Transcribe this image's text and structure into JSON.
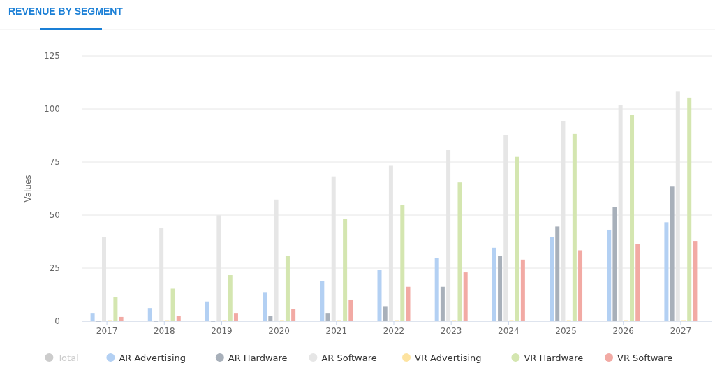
{
  "chart_data": {
    "type": "bar",
    "title": "REVENUE BY SEGMENT",
    "ylabel": "Values",
    "categories": [
      "2017",
      "2018",
      "2019",
      "2020",
      "2021",
      "2022",
      "2023",
      "2024",
      "2025",
      "2026",
      "2027"
    ],
    "series": [
      {
        "name": "Total",
        "color": "#cccccc",
        "values": [
          null,
          null,
          null,
          null,
          null,
          null,
          null,
          null,
          null,
          null,
          null
        ]
      },
      {
        "name": "AR Advertising",
        "color": "#b3d0f3",
        "values": [
          3.9,
          6.2,
          9.3,
          13.7,
          19,
          24.2,
          29.8,
          34.6,
          39.5,
          43.1,
          46.6
        ]
      },
      {
        "name": "AR Hardware",
        "color": "#a8b0ba",
        "values": [
          0,
          0,
          0,
          2.5,
          3.9,
          7.1,
          16.2,
          30.7,
          44.6,
          53.8,
          63.4
        ]
      },
      {
        "name": "AR Software",
        "color": "#e6e6e6",
        "values": [
          39.7,
          43.8,
          49.9,
          57.3,
          68.2,
          73.2,
          80.6,
          87.7,
          94.4,
          101.8,
          108.1
        ]
      },
      {
        "name": "VR Advertising",
        "color": "#fde3a0",
        "values": [
          0.5,
          0.5,
          0.5,
          0.5,
          0.5,
          0.5,
          0.5,
          0.5,
          0.5,
          0.5,
          0.5
        ]
      },
      {
        "name": "VR Hardware",
        "color": "#d4e6b0",
        "values": [
          11.3,
          15.3,
          21.7,
          30.7,
          48.2,
          54.6,
          65.4,
          77.4,
          88.2,
          97.3,
          105.3
        ]
      },
      {
        "name": "VR Software",
        "color": "#f2aaa4",
        "values": [
          2,
          2.6,
          3.9,
          5.8,
          10.2,
          16.2,
          23,
          29,
          33.4,
          36.2,
          37.8
        ]
      }
    ],
    "ylim": [
      0,
      125
    ],
    "yticks": [
      0,
      25,
      50,
      75,
      100,
      125
    ],
    "grid": "y",
    "legend": "bottom"
  }
}
